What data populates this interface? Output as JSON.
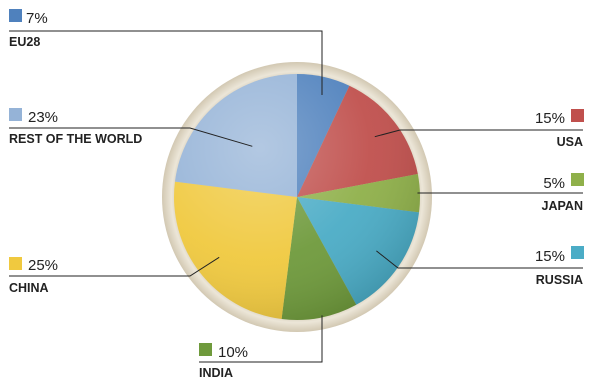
{
  "chart_data": {
    "type": "pie",
    "title": "",
    "slices": [
      {
        "label": "EU28",
        "value": 7,
        "value_label": "7%",
        "color": "#4f81bd"
      },
      {
        "label": "USA",
        "value": 15,
        "value_label": "15%",
        "color": "#c0504d"
      },
      {
        "label": "JAPAN",
        "value": 5,
        "value_label": "5%",
        "color": "#8fb04a"
      },
      {
        "label": "RUSSIA",
        "value": 15,
        "value_label": "15%",
        "color": "#4bacc6"
      },
      {
        "label": "INDIA",
        "value": 10,
        "value_label": "10%",
        "color": "#6f9a3c"
      },
      {
        "label": "CHINA",
        "value": 25,
        "value_label": "25%",
        "color": "#f0c93f"
      },
      {
        "label": "REST OF THE WORLD",
        "value": 23,
        "value_label": "23%",
        "color": "#95b3d7"
      }
    ],
    "legend": "none"
  }
}
